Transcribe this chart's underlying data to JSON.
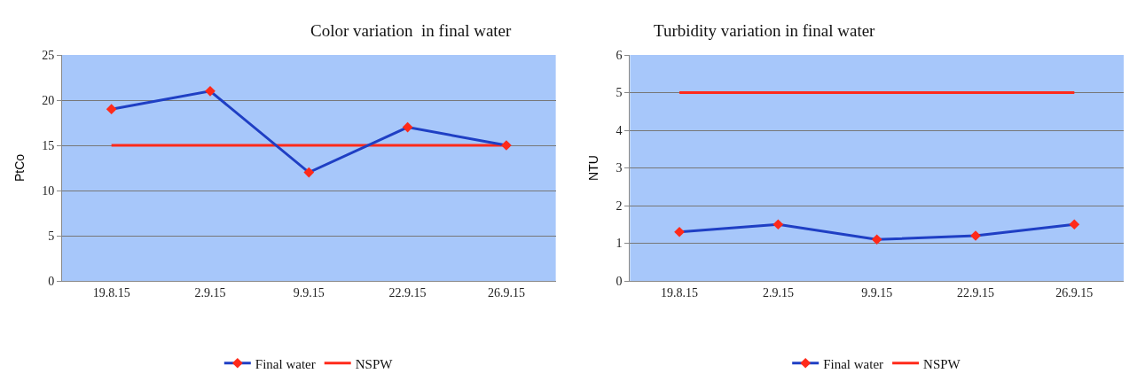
{
  "chart_data": [
    {
      "type": "line",
      "title": "Color variation  in final water",
      "ylabel": "PtCo",
      "categories": [
        "19.8.15",
        "2.9.15",
        "9.9.15",
        "22.9.15",
        "26.9.15"
      ],
      "ylim": [
        0,
        25
      ],
      "yticks": [
        0,
        5,
        10,
        15,
        20,
        25
      ],
      "grid": "y",
      "legend": "bottom",
      "series": [
        {
          "name": "Final water",
          "color": "#1f3fc4",
          "marker": "diamond",
          "values": [
            19,
            21,
            12,
            17,
            15
          ]
        },
        {
          "name": "NSPW",
          "color": "#ff2a1a",
          "marker": "none",
          "values": [
            15,
            15,
            15,
            15,
            15
          ]
        }
      ]
    },
    {
      "type": "line",
      "title": "Turbidity variation in final water",
      "ylabel": "NTU",
      "categories": [
        "19.8.15",
        "2.9.15",
        "9.9.15",
        "22.9.15",
        "26.9.15"
      ],
      "ylim": [
        0,
        6
      ],
      "yticks": [
        0,
        1,
        2,
        3,
        4,
        5,
        6
      ],
      "grid": "y",
      "legend": "bottom",
      "series": [
        {
          "name": "Final water",
          "color": "#1f3fc4",
          "marker": "diamond",
          "values": [
            1.3,
            1.5,
            1.1,
            1.2,
            1.5
          ]
        },
        {
          "name": "NSPW",
          "color": "#ff2a1a",
          "marker": "none",
          "values": [
            5,
            5,
            5,
            5,
            5
          ]
        }
      ]
    }
  ]
}
